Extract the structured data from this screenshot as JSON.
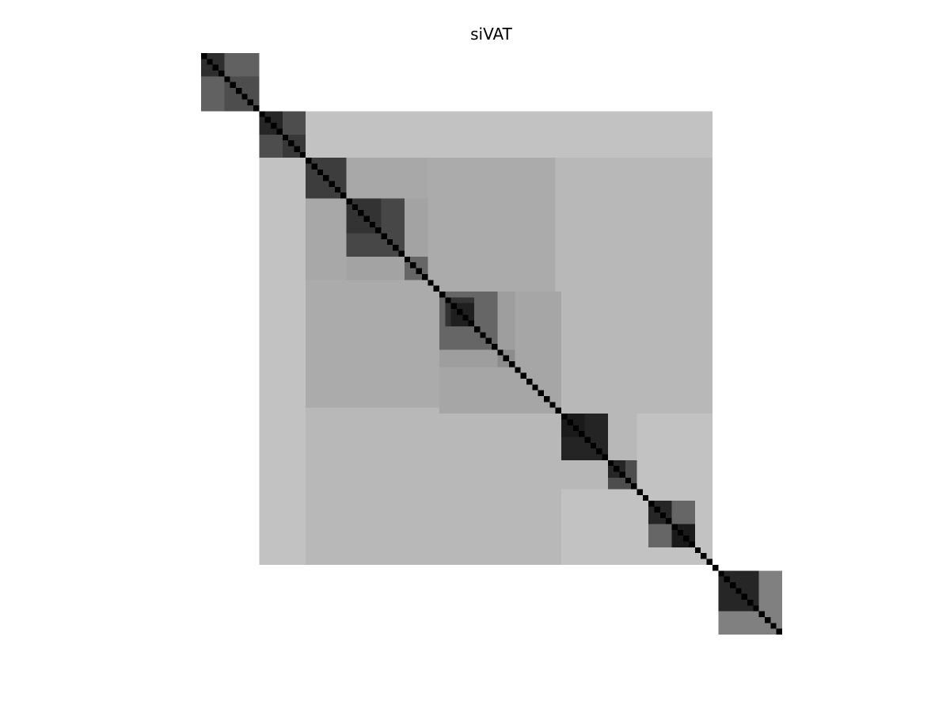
{
  "title": "siVAT",
  "chart_data": {
    "type": "heatmap",
    "title": "siVAT",
    "colormap": "gray",
    "colors": {
      "background": "#ffffff",
      "low": "#000000",
      "high": "#ffffff"
    },
    "size": 100,
    "boundaries": [
      0,
      10,
      18,
      25,
      35,
      39,
      41,
      47,
      49,
      51,
      54,
      56,
      58,
      61,
      62,
      64,
      66,
      70,
      72,
      73,
      75,
      79,
      81,
      85,
      88,
      89,
      92,
      96,
      100
    ],
    "cluster_blocks": [
      {
        "range": [
          0,
          10
        ],
        "level": 0.88
      },
      {
        "range": [
          10,
          88
        ],
        "level": 0.76
      },
      {
        "range": [
          18,
          88
        ],
        "level": 0.72
      },
      {
        "range": [
          18,
          61
        ],
        "level": 0.67
      },
      {
        "range": [
          18,
          39
        ],
        "level": 0.66
      },
      {
        "range": [
          25,
          39
        ],
        "level": 0.64
      },
      {
        "range": [
          41,
          62
        ],
        "level": 0.65
      },
      {
        "range": [
          41,
          54
        ],
        "level": 0.62
      },
      {
        "range": [
          62,
          88
        ],
        "level": 0.76
      },
      {
        "range": [
          62,
          75
        ],
        "level": 0.72
      },
      {
        "range": [
          75,
          88
        ],
        "level": 0.76
      },
      {
        "range": [
          89,
          100
        ],
        "level": 0.88
      }
    ],
    "diagonal_blocks": [
      {
        "range": [
          0,
          10
        ],
        "level": 0.38,
        "sub": [
          {
            "range": [
              0,
              4
            ],
            "level": 0.18
          },
          {
            "range": [
              4,
              10
            ],
            "level": 0.3
          }
        ]
      },
      {
        "range": [
          10,
          18
        ],
        "level": 0.3,
        "sub": [
          {
            "range": [
              10,
              14
            ],
            "level": 0.15
          },
          {
            "range": [
              14,
              18
            ],
            "level": 0.22
          }
        ]
      },
      {
        "range": [
          18,
          25
        ],
        "level": 0.24
      },
      {
        "range": [
          25,
          35
        ],
        "level": 0.28,
        "sub": [
          {
            "range": [
              25,
              31
            ],
            "level": 0.2
          }
        ]
      },
      {
        "range": [
          35,
          39
        ],
        "level": 0.4
      },
      {
        "range": [
          41,
          51
        ],
        "level": 0.4,
        "sub": [
          {
            "range": [
              42,
              47
            ],
            "level": 0.2
          },
          {
            "range": [
              43,
              47
            ],
            "level": 0.12
          }
        ]
      },
      {
        "range": [
          51,
          54
        ],
        "level": 0.55
      },
      {
        "range": [
          62,
          70
        ],
        "level": 0.14,
        "sub": [
          {
            "range": [
              62,
              66
            ],
            "level": 0.1
          }
        ]
      },
      {
        "range": [
          70,
          75
        ],
        "level": 0.3,
        "sub": [
          {
            "range": [
              70,
              73
            ],
            "level": 0.15
          }
        ]
      },
      {
        "range": [
          77,
          85
        ],
        "level": 0.4,
        "sub": [
          {
            "range": [
              77,
              81
            ],
            "level": 0.15
          },
          {
            "range": [
              81,
              85
            ],
            "level": 0.1
          }
        ]
      },
      {
        "range": [
          89,
          100
        ],
        "level": 0.5,
        "sub": [
          {
            "range": [
              89,
              96
            ],
            "level": 0.15
          }
        ]
      }
    ],
    "diagonal_level": 0.0,
    "xlabel": "",
    "ylabel": "",
    "axes_visible": false,
    "grid": false
  }
}
